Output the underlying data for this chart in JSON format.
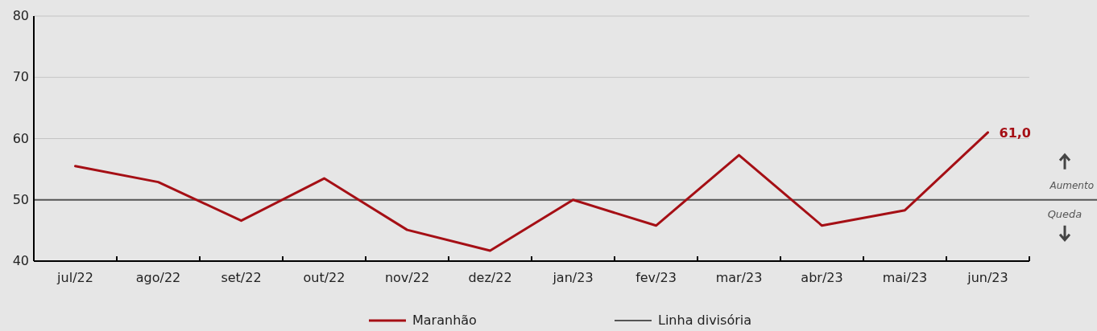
{
  "chart_data": {
    "type": "line",
    "categories": [
      "jul/22",
      "ago/22",
      "set/22",
      "out/22",
      "nov/22",
      "dez/22",
      "jan/23",
      "fev/23",
      "mar/23",
      "abr/23",
      "mai/23",
      "jun/23"
    ],
    "series": [
      {
        "name": "Maranhão",
        "color": "#a50f15",
        "values": [
          55.5,
          52.9,
          46.6,
          53.5,
          45.1,
          41.7,
          50.0,
          45.8,
          57.3,
          45.8,
          48.3,
          61.0
        ],
        "value_labels": [
          null,
          null,
          null,
          null,
          null,
          null,
          null,
          null,
          null,
          null,
          null,
          "61,0"
        ]
      }
    ],
    "ylim": [
      40,
      80
    ],
    "yticks": [
      40,
      50,
      60,
      70,
      80
    ],
    "grid": "y",
    "legend": "bottom",
    "marker": "none",
    "line_style": "solid",
    "ref_lines": [
      {
        "axis": "y",
        "value": 50,
        "label": "Linha divisória",
        "color": "#555555"
      }
    ],
    "annotations": [
      "Aumento",
      "Queda"
    ]
  }
}
